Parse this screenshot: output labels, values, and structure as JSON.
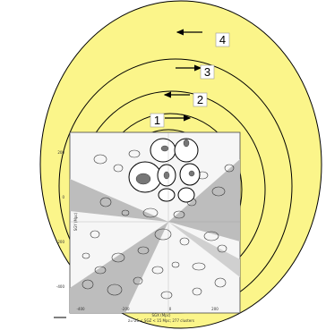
{
  "rings": [
    {
      "number": "1",
      "direction": "right"
    },
    {
      "number": "2",
      "direction": "left"
    },
    {
      "number": "3",
      "direction": "right"
    },
    {
      "number": "4",
      "direction": "left"
    }
  ],
  "map": {
    "x_axis_label": "SGX (Mpc)",
    "y_axis_label": "SGY (Mpc)",
    "caption": "z=-25 < SGZ < 15 Mpc; 277 clusters",
    "x_ticks": [
      "-400",
      "-200",
      "0",
      "200"
    ],
    "y_ticks": [
      "200",
      "0",
      "-200",
      "-400"
    ]
  },
  "colors": {
    "ring_fill": "#fbf58a",
    "ring_stroke": "#000000",
    "map_bg": "#f6f6f6",
    "zone_of_avoidance": "#bdbdbd"
  }
}
